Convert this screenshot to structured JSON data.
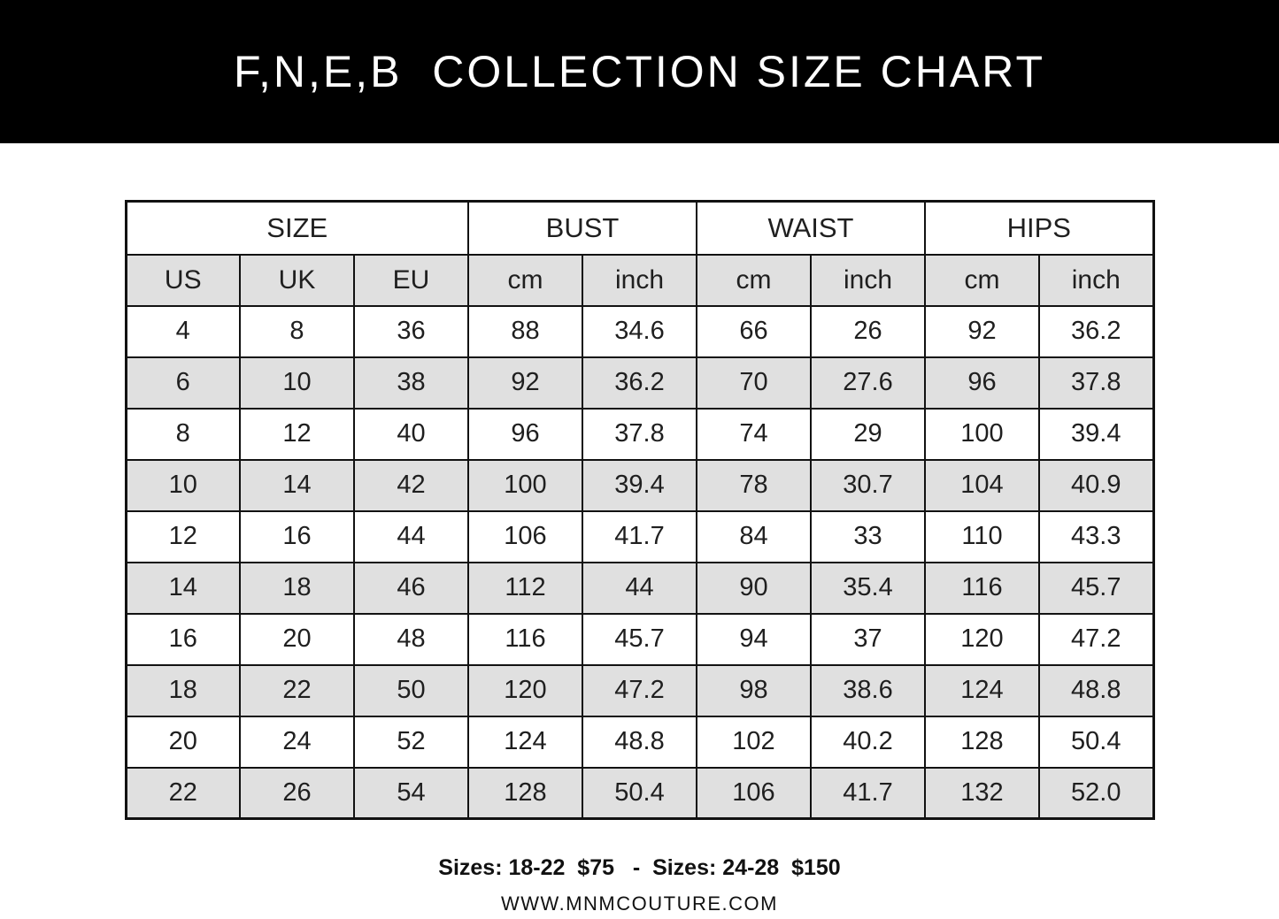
{
  "banner": {
    "title": "F,N,E,B  COLLECTION SIZE CHART",
    "bg_color": "#000000",
    "text_color": "#ffffff"
  },
  "chart_data": {
    "type": "table",
    "title": "F,N,E,B  COLLECTION SIZE CHART",
    "group_headers": [
      {
        "label": "SIZE",
        "span": 3
      },
      {
        "label": "BUST",
        "span": 2
      },
      {
        "label": "WAIST",
        "span": 2
      },
      {
        "label": "HIPS",
        "span": 2
      }
    ],
    "sub_headers": [
      "US",
      "UK",
      "EU",
      "cm",
      "inch",
      "cm",
      "inch",
      "cm",
      "inch"
    ],
    "rows": [
      [
        "4",
        "8",
        "36",
        "88",
        "34.6",
        "66",
        "26",
        "92",
        "36.2"
      ],
      [
        "6",
        "10",
        "38",
        "92",
        "36.2",
        "70",
        "27.6",
        "96",
        "37.8"
      ],
      [
        "8",
        "12",
        "40",
        "96",
        "37.8",
        "74",
        "29",
        "100",
        "39.4"
      ],
      [
        "10",
        "14",
        "42",
        "100",
        "39.4",
        "78",
        "30.7",
        "104",
        "40.9"
      ],
      [
        "12",
        "16",
        "44",
        "106",
        "41.7",
        "84",
        "33",
        "110",
        "43.3"
      ],
      [
        "14",
        "18",
        "46",
        "112",
        "44",
        "90",
        "35.4",
        "116",
        "45.7"
      ],
      [
        "16",
        "20",
        "48",
        "116",
        "45.7",
        "94",
        "37",
        "120",
        "47.2"
      ],
      [
        "18",
        "22",
        "50",
        "120",
        "47.2",
        "98",
        "38.6",
        "124",
        "48.8"
      ],
      [
        "20",
        "24",
        "52",
        "124",
        "48.8",
        "102",
        "40.2",
        "128",
        "50.4"
      ],
      [
        "22",
        "26",
        "54",
        "128",
        "50.4",
        "106",
        "41.7",
        "132",
        "52.0"
      ]
    ],
    "stripe_color": "#e0e0e0",
    "border_color": "#121212",
    "layout_hints": {
      "striping": "even data rows shaded starting with second row",
      "header_row_shaded": true
    }
  },
  "footer": {
    "pricing": "Sizes: 18-22  $75   -  Sizes: 24-28  $150",
    "website": "WWW.MNMCOUTURE.COM"
  }
}
